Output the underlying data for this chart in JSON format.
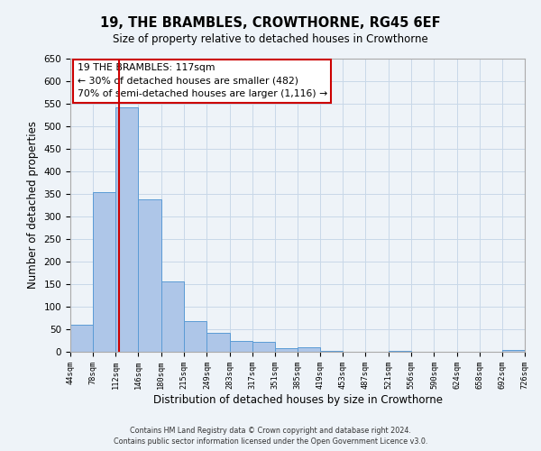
{
  "title": "19, THE BRAMBLES, CROWTHORNE, RG45 6EF",
  "subtitle": "Size of property relative to detached houses in Crowthorne",
  "xlabel": "Distribution of detached houses by size in Crowthorne",
  "ylabel": "Number of detached properties",
  "bar_left_edges": [
    44,
    78,
    112,
    146,
    180,
    215,
    249,
    283,
    317,
    351,
    385,
    419,
    453,
    487,
    521,
    556,
    590,
    624,
    658,
    692
  ],
  "bar_widths": [
    34,
    34,
    34,
    34,
    35,
    34,
    34,
    34,
    34,
    34,
    34,
    34,
    34,
    34,
    35,
    34,
    34,
    34,
    34,
    34
  ],
  "bar_heights": [
    60,
    355,
    542,
    338,
    157,
    68,
    42,
    25,
    22,
    8,
    10,
    3,
    1,
    1,
    2,
    0,
    1,
    0,
    0,
    5
  ],
  "bar_color": "#aec6e8",
  "bar_edge_color": "#5b9bd5",
  "grid_color": "#c8d8e8",
  "background_color": "#eef3f8",
  "vline_x": 117,
  "vline_color": "#cc0000",
  "annotation_line1": "19 THE BRAMBLES: 117sqm",
  "annotation_line2": "← 30% of detached houses are smaller (482)",
  "annotation_line3": "70% of semi-detached houses are larger (1,116) →",
  "annotation_box_color": "#cc0000",
  "annotation_box_fill": "#ffffff",
  "tick_labels": [
    "44sqm",
    "78sqm",
    "112sqm",
    "146sqm",
    "180sqm",
    "215sqm",
    "249sqm",
    "283sqm",
    "317sqm",
    "351sqm",
    "385sqm",
    "419sqm",
    "453sqm",
    "487sqm",
    "521sqm",
    "556sqm",
    "590sqm",
    "624sqm",
    "658sqm",
    "692sqm",
    "726sqm"
  ],
  "ylim": [
    0,
    650
  ],
  "yticks": [
    0,
    50,
    100,
    150,
    200,
    250,
    300,
    350,
    400,
    450,
    500,
    550,
    600,
    650
  ],
  "footer_line1": "Contains HM Land Registry data © Crown copyright and database right 2024.",
  "footer_line2": "Contains public sector information licensed under the Open Government Licence v3.0."
}
